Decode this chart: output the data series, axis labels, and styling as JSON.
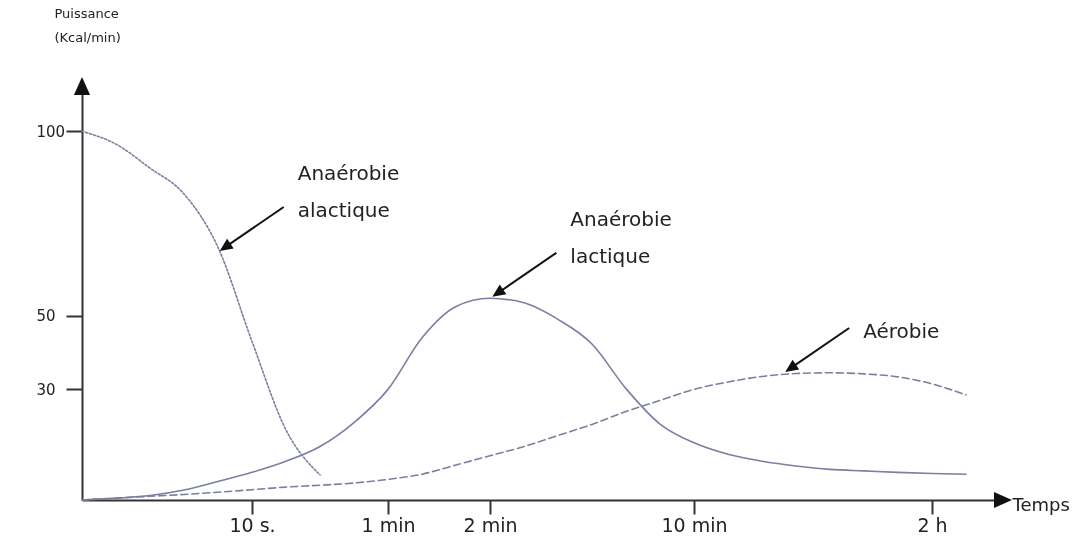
{
  "chart_data": {
    "type": "line",
    "xlabel": "Temps",
    "ylabel": "Puissance\n(Kcal/min)",
    "categories": [
      null,
      null,
      null,
      null,
      null,
      "10 s.",
      null,
      null,
      null,
      "1 min",
      null,
      null,
      "2 min",
      null,
      null,
      null,
      null,
      null,
      "10 min",
      null,
      null,
      null,
      null,
      null,
      null,
      "2 h",
      null,
      null
    ],
    "ylim": [
      0,
      112
    ],
    "yticks": [
      30,
      50,
      100
    ],
    "grid": false,
    "series": [
      {
        "color": "#7a7fa0",
        "line_style": "dotted",
        "values": [
          100,
          96.5,
          90,
          83,
          68.5,
          43,
          19,
          6.8,
          null,
          null,
          null,
          null,
          null,
          null,
          null,
          null,
          null,
          null,
          null,
          null,
          null,
          null,
          null,
          null,
          null,
          null,
          null,
          null
        ]
      },
      {
        "color": "#7a7fa0",
        "line_style": "solid",
        "values": [
          0,
          0.5,
          1.2,
          2.7,
          5,
          7.5,
          10.5,
          14.5,
          21,
          30,
          44,
          52.5,
          54.7,
          53.5,
          49,
          42.3,
          30.2,
          20.6,
          15.5,
          12.4,
          10.5,
          9.2,
          8.3,
          7.9,
          7.5,
          7.2,
          7.0,
          null
        ]
      },
      {
        "color": "#7a7fa0",
        "line_style": "dashed",
        "values": [
          0,
          0.5,
          1.0,
          1.5,
          2.1,
          2.8,
          3.5,
          4.0,
          4.6,
          5.6,
          7.0,
          9.5,
          12,
          14.5,
          17.5,
          20.5,
          24,
          27,
          30,
          32,
          33.5,
          34.3,
          34.5,
          34.2,
          33.4,
          31.5,
          28.5,
          null
        ]
      }
    ],
    "annotations": [
      "Anaérobie\nalactique",
      "Anaérobie\nlactique",
      "Aérobie"
    ]
  }
}
